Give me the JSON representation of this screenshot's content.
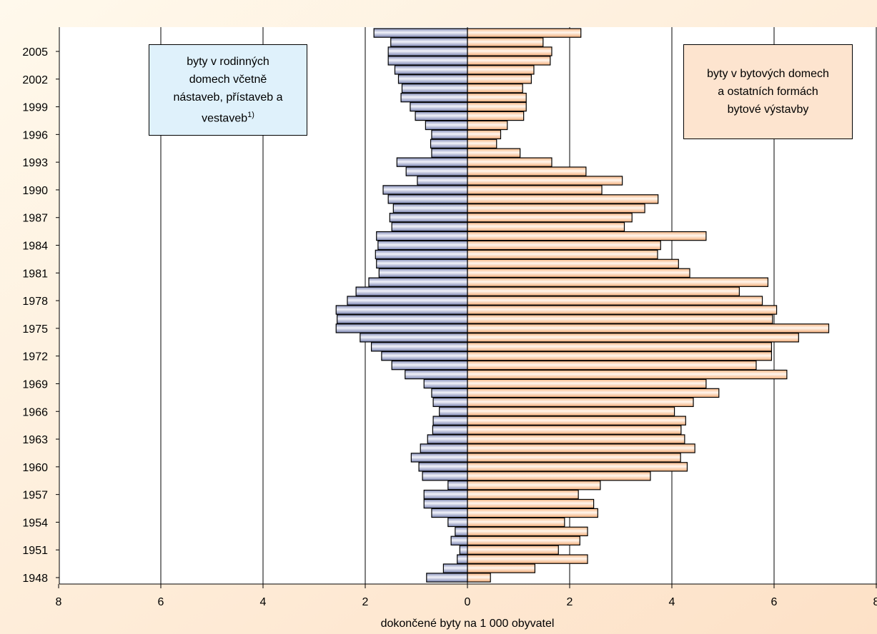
{
  "chart_data": {
    "type": "bar",
    "orientation": "horizontal",
    "layout": "population-pyramid",
    "title": "",
    "xlabel": "dokončené byty na 1 000 obyvatel",
    "ylabel": "",
    "xlim": [
      -8,
      8
    ],
    "x_ticks": [
      -8,
      -6,
      -4,
      -2,
      0,
      2,
      4,
      6,
      8
    ],
    "x_tick_labels": [
      "8",
      "6",
      "4",
      "2",
      "0",
      "2",
      "4",
      "6",
      "8"
    ],
    "y_tick_labels": [
      "1948",
      "1951",
      "1954",
      "1957",
      "1960",
      "1963",
      "1966",
      "1969",
      "1972",
      "1975",
      "1978",
      "1981",
      "1984",
      "1987",
      "1990",
      "1993",
      "1996",
      "1999",
      "2002",
      "2005"
    ],
    "grid": "vertical",
    "categories": [
      1948,
      1949,
      1950,
      1951,
      1952,
      1953,
      1954,
      1955,
      1956,
      1957,
      1958,
      1959,
      1960,
      1961,
      1962,
      1963,
      1964,
      1965,
      1966,
      1967,
      1968,
      1969,
      1970,
      1971,
      1972,
      1973,
      1974,
      1975,
      1976,
      1977,
      1978,
      1979,
      1980,
      1981,
      1982,
      1983,
      1984,
      1985,
      1986,
      1987,
      1988,
      1989,
      1990,
      1991,
      1992,
      1993,
      1994,
      1995,
      1996,
      1997,
      1998,
      1999,
      2000,
      2001,
      2002,
      2003,
      2004,
      2005,
      2006,
      2007
    ],
    "series": [
      {
        "side": "left",
        "color": "#9ba3c9",
        "values": [
          0.8,
          0.47,
          0.2,
          0.15,
          0.32,
          0.24,
          0.38,
          0.7,
          0.85,
          0.85,
          0.38,
          0.88,
          0.95,
          1.1,
          0.92,
          0.78,
          0.68,
          0.67,
          0.55,
          0.67,
          0.7,
          0.85,
          1.22,
          1.48,
          1.68,
          1.88,
          2.1,
          2.57,
          2.55,
          2.57,
          2.35,
          2.18,
          1.93,
          1.73,
          1.78,
          1.8,
          1.75,
          1.78,
          1.48,
          1.52,
          1.45,
          1.55,
          1.65,
          0.98,
          1.2,
          1.38,
          0.7,
          0.72,
          0.7,
          0.82,
          1.02,
          1.12,
          1.3,
          1.28,
          1.35,
          1.42,
          1.55,
          1.55,
          1.5,
          1.83
        ]
      },
      {
        "side": "right",
        "color": "#fbc9a0",
        "values": [
          0.45,
          1.32,
          2.35,
          1.78,
          2.2,
          2.35,
          1.9,
          2.55,
          2.47,
          2.17,
          2.6,
          3.58,
          4.3,
          4.17,
          4.45,
          4.25,
          4.18,
          4.27,
          4.05,
          4.42,
          4.92,
          4.67,
          6.25,
          5.65,
          5.95,
          5.95,
          6.48,
          7.07,
          5.97,
          6.05,
          5.77,
          5.32,
          5.88,
          4.35,
          4.13,
          3.72,
          3.78,
          4.67,
          3.07,
          3.22,
          3.47,
          3.73,
          2.63,
          3.03,
          2.32,
          1.65,
          1.03,
          0.57,
          0.65,
          0.78,
          1.1,
          1.15,
          1.15,
          1.08,
          1.25,
          1.3,
          1.62,
          1.65,
          1.48,
          2.22
        ]
      }
    ],
    "legend": [
      {
        "side": "left",
        "placement": "top-left",
        "lines": [
          "byty v rodinných",
          "domech včetně",
          "nástaveb, přístaveb a",
          "vestaveb"
        ],
        "superscript": "1)"
      },
      {
        "side": "right",
        "placement": "top-right",
        "lines": [
          "byty v bytových domech",
          "a ostatních formách",
          "bytové výstavby"
        ]
      }
    ],
    "colors": {
      "background_outer": "#fff9ec",
      "background_outer_alt": "#fde1c7",
      "plot_background": "#ffffff",
      "gridline": "#000000",
      "left_legend_bg": "#dff1fb",
      "right_legend_bg": "#fde4cf"
    }
  }
}
